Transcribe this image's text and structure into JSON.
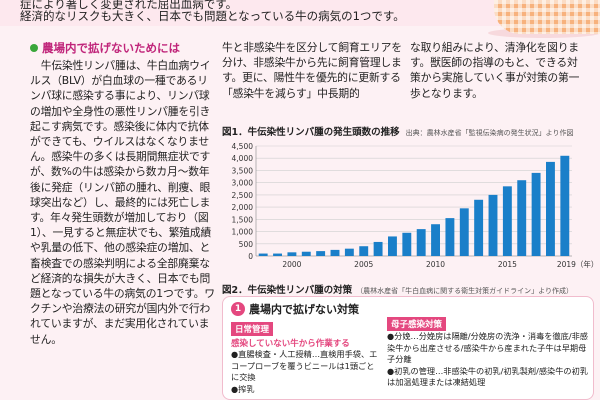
{
  "top": {
    "line1": "症により著しく変更された屈出血病です。",
    "line2": "経済的なリスクも大きく、日本でも問題となっている牛の病気の1つです。"
  },
  "left": {
    "heading": "農場内で拡げないためには",
    "body": "牛伝染性リンパ腫は、牛白血病ウイルス（BLV）が白血球の一種であるリンパ球に感染する事により、リンパ球の増加や全身性の悪性リンパ腫を引き起こす病気です。感染後に体内で抗体ができても、ウイルスはなくなりません。感染牛の多くは長期間無症状ですが、数%の牛は感染から数カ月〜数年後に発症（リンパ節の腫れ、削痩、眼球突出など）し、最終的には死亡します。年々発生頭数が増加しており（図1）、一見すると無症状でも、繁殖成績や乳量の低下、他の感染症の増加、と畜検査での感染判明による全部廃棄など経済的な損失が大きく、日本でも問題となっている牛の病気の1つです。ワクチンや治療法の研究が国内外で行われていますが、まだ実用化されていません。"
  },
  "middle": {
    "body": "牛と非感染牛を区分して飼育エリアを分け、非感染牛から先に飼育管理します。更に、陽性牛を優先的に更新する「感染牛を減らす」中長期的"
  },
  "right": {
    "body": "な取り組みにより、清浄化を図ります。獣医師の指導のもと、できる対策から実施していく事が対策の第一歩となります。"
  },
  "figure1": {
    "caption": "図1．牛伝染性リンパ腫の発生頭数の推移",
    "source": "出典：農林水産省「監視伝染病の発生状況」より作図"
  },
  "chart_data": {
    "type": "bar",
    "categories": [
      "1998",
      "1999",
      "2000",
      "2001",
      "2002",
      "2003",
      "2004",
      "2005",
      "2006",
      "2007",
      "2008",
      "2009",
      "2010",
      "2011",
      "2012",
      "2013",
      "2014",
      "2015",
      "2016",
      "2017",
      "2018",
      "2019"
    ],
    "values": [
      100,
      100,
      150,
      175,
      200,
      250,
      300,
      400,
      575,
      800,
      950,
      1100,
      1300,
      1550,
      1950,
      2300,
      2500,
      2850,
      3100,
      3400,
      3850,
      4100
    ],
    "yticks": [
      "0",
      "500",
      "1,000",
      "1,500",
      "2,000",
      "2,500",
      "3,000",
      "3,500",
      "4,000",
      "4,500"
    ],
    "xticks": [
      "2000",
      "2005",
      "2010",
      "2015",
      "2019（年）"
    ],
    "xtick_years": [
      2000,
      2005,
      2010,
      2015,
      2019
    ],
    "ylim": [
      0,
      4500
    ],
    "grid": true,
    "bar_color": "#1a7fc9"
  },
  "figure2": {
    "caption": "図2．牛伝染性リンパ腫の対策",
    "source": "（農林水産省「牛白血病に関する衛生対策ガイドライン」より作成）"
  },
  "box": {
    "number": "1",
    "title": "農場内で拡げない対策",
    "tag_left": "日常管理",
    "tag_right": "母子感染対策",
    "sub_heading": "感染していない牛から作業する",
    "left_body": "●直腸検査・人工授精…直検用手袋、エコープローブを覆うビニールは1頭ごとに交換\n●搾乳",
    "right_body": "●分娩…分娩房は隔離/分娩房の洗浄・消毒を徹底/非感染牛から出産させる/感染牛から産まれた子牛は早期母子分離\n●初乳の管理…非感染牛の初乳/初乳製剤/感染牛の初乳は加温処理または凍結処理"
  }
}
